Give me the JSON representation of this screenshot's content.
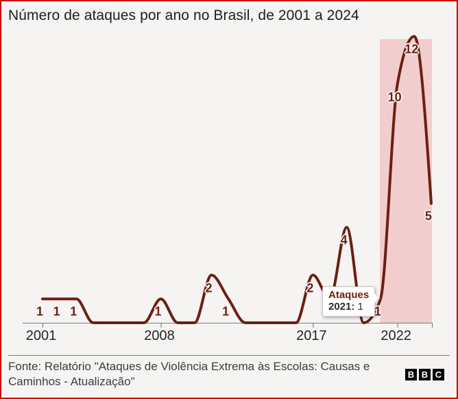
{
  "header": {
    "title": "Número de ataques por ano no Brasil, de 2001 a 2024"
  },
  "chart_data": {
    "type": "line",
    "title": "Número de ataques por ano no Brasil, de 2001 a 2024",
    "x": [
      2001,
      2002,
      2003,
      2004,
      2005,
      2006,
      2007,
      2008,
      2009,
      2010,
      2011,
      2012,
      2013,
      2014,
      2015,
      2016,
      2017,
      2018,
      2019,
      2020,
      2021,
      2022,
      2023,
      2024
    ],
    "values": [
      1,
      1,
      1,
      0,
      0,
      0,
      0,
      1,
      0,
      0,
      2,
      1,
      0,
      0,
      0,
      0,
      2,
      1,
      4,
      0,
      1,
      10,
      12,
      5
    ],
    "x_ticks": [
      2001,
      2008,
      2017,
      2022
    ],
    "labeled_years": [
      2001,
      2002,
      2003,
      2008,
      2011,
      2012,
      2017,
      2018,
      2019,
      2021,
      2022,
      2023,
      2024
    ],
    "ylim": [
      0,
      12
    ],
    "grid": false,
    "legend": null,
    "line_color": "#6b1f12",
    "label_color": "#6b1f12",
    "axis_color": "#7b7b7b",
    "highlight": {
      "from_year": 2021,
      "to_year": 2024,
      "color": "#f2cdcd"
    }
  },
  "tooltip": {
    "title": "Ataques",
    "year_label": "2021:",
    "value": "1"
  },
  "footer": {
    "source_line1": "Fonte: Relatório \"Ataques de Violência Extrema às Escolas: Causas e",
    "source_line2": "Caminhos - Atualização\"",
    "logo_letters": [
      "B",
      "B",
      "C"
    ]
  },
  "colors": {
    "background": "#f5f4f2",
    "frame": "#cc0000",
    "title_text": "#1d1d1d",
    "source_text": "#3c3c3c"
  }
}
